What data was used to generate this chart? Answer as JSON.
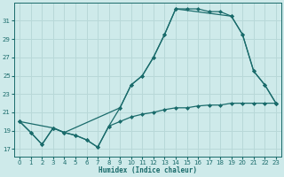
{
  "bg_color": "#ceeaea",
  "grid_color": "#b8d8d8",
  "line_color": "#1a6b6b",
  "marker": "D",
  "markersize": 2.0,
  "linewidth": 0.9,
  "xlabel": "Humidex (Indice chaleur)",
  "yticks": [
    17,
    19,
    21,
    23,
    25,
    27,
    29,
    31
  ],
  "xticks": [
    0,
    1,
    2,
    3,
    4,
    5,
    6,
    7,
    8,
    9,
    10,
    11,
    12,
    13,
    14,
    15,
    16,
    17,
    18,
    19,
    20,
    21,
    22,
    23
  ],
  "xlim": [
    -0.5,
    23.5
  ],
  "ylim": [
    16.2,
    33.0
  ],
  "line1_x": [
    0,
    1,
    2,
    3,
    4,
    5,
    6,
    7,
    8,
    9,
    10,
    11,
    12,
    13,
    14,
    15,
    16,
    17,
    18,
    19,
    20,
    21,
    22,
    23
  ],
  "line1_y": [
    20.0,
    18.8,
    17.5,
    19.3,
    18.8,
    18.5,
    18.0,
    17.2,
    19.5,
    20.0,
    20.5,
    20.8,
    21.0,
    21.3,
    21.5,
    21.5,
    21.7,
    21.8,
    21.8,
    22.0,
    22.0,
    22.0,
    22.0,
    22.0
  ],
  "line2_x": [
    0,
    1,
    2,
    3,
    4,
    5,
    6,
    7,
    8,
    9,
    10,
    11,
    12,
    13,
    14,
    15,
    16,
    17,
    18,
    19,
    20,
    21,
    22,
    23
  ],
  "line2_y": [
    20.0,
    18.8,
    17.5,
    19.3,
    18.8,
    18.5,
    18.0,
    17.2,
    19.5,
    21.5,
    24.0,
    25.0,
    27.0,
    29.5,
    32.3,
    32.3,
    32.3,
    32.0,
    32.0,
    31.5,
    29.5,
    25.5,
    24.0,
    22.0
  ],
  "line3_x": [
    0,
    3,
    4,
    9,
    10,
    11,
    12,
    13,
    14,
    19,
    20,
    21,
    22,
    23
  ],
  "line3_y": [
    20.0,
    19.3,
    18.8,
    21.5,
    24.0,
    25.0,
    27.0,
    29.5,
    32.3,
    31.5,
    29.5,
    25.5,
    24.0,
    22.0
  ]
}
